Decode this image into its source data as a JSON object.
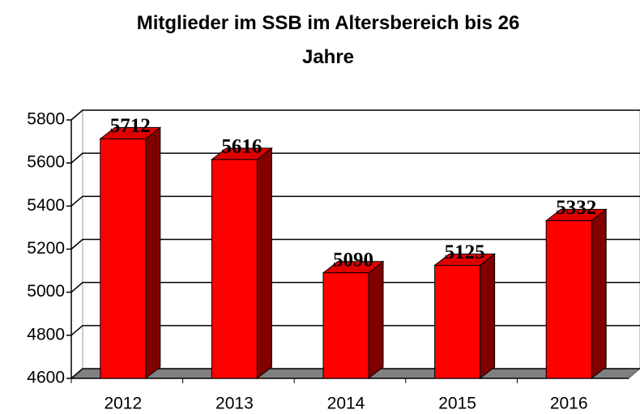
{
  "chart_data": {
    "type": "bar3d",
    "title": "Mitglieder im SSB im Altersbereich bis 26 Jahre",
    "categories": [
      "2012",
      "2013",
      "2014",
      "2015",
      "2016"
    ],
    "values": [
      5712,
      5616,
      5090,
      5125,
      5332
    ],
    "color": "#ff0000",
    "ylim": [
      4600,
      5800
    ],
    "yticks": [
      4600,
      4800,
      5000,
      5200,
      5400,
      5600,
      5800
    ],
    "grid": true
  }
}
